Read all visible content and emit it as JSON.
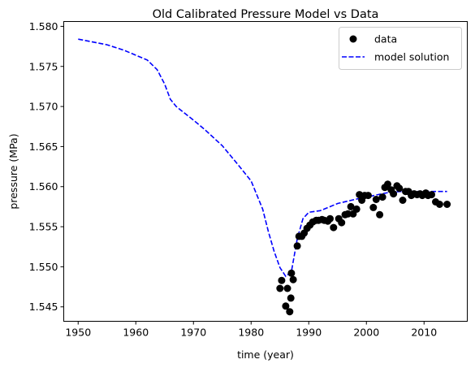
{
  "chart_data": {
    "type": "scatter",
    "title": "Old Calibrated Pressure Model vs Data",
    "xlabel": "time (year)",
    "ylabel": "pressure (MPa)",
    "xlim": [
      1947.5,
      2017.5
    ],
    "ylim": [
      1.5432,
      1.5806
    ],
    "xticks": [
      1950,
      1960,
      1970,
      1980,
      1990,
      2000,
      2010
    ],
    "yticks": [
      1.545,
      1.55,
      1.555,
      1.56,
      1.565,
      1.57,
      1.575,
      1.58
    ],
    "ytick_labels": [
      "1.545",
      "1.550",
      "1.555",
      "1.560",
      "1.565",
      "1.570",
      "1.575",
      "1.580"
    ],
    "grid": false,
    "legend_position": "top-right",
    "colors": {
      "data": "#000000",
      "model": "#0000ff"
    },
    "series": [
      {
        "name": "data",
        "style": "markers",
        "x": [
          1985,
          1985.3,
          1986,
          1986.3,
          1986.7,
          1986.9,
          1987,
          1987.3,
          1988,
          1988.3,
          1988.8,
          1989.2,
          1989.7,
          1990.2,
          1990.7,
          1991.3,
          1991.7,
          1992.3,
          1992.7,
          1993.3,
          1993.7,
          1994.3,
          1995.2,
          1995.7,
          1996.3,
          1996.8,
          1997.3,
          1997.7,
          1998.3,
          1998.8,
          1999.2,
          1999.7,
          2000.3,
          2001.2,
          2001.7,
          2002.3,
          2002.8,
          2003.2,
          2003.7,
          2004.3,
          2004.7,
          2005.3,
          2005.7,
          2006.3,
          2006.8,
          2007.3,
          2007.8,
          2008.3,
          2008.8,
          2009.3,
          2009.7,
          2010.3,
          2010.7,
          2011.3,
          2012,
          2012.7,
          2014
        ],
        "y": [
          1.5473,
          1.5483,
          1.5451,
          1.5473,
          1.5444,
          1.5461,
          1.5492,
          1.5484,
          1.5526,
          1.5538,
          1.5538,
          1.5542,
          1.5548,
          1.5552,
          1.5556,
          1.5558,
          1.5558,
          1.5559,
          1.5558,
          1.5557,
          1.556,
          1.5549,
          1.556,
          1.5555,
          1.5565,
          1.5566,
          1.5575,
          1.5566,
          1.5572,
          1.559,
          1.5583,
          1.5589,
          1.5589,
          1.5574,
          1.5584,
          1.5565,
          1.5587,
          1.5599,
          1.5603,
          1.5596,
          1.5591,
          1.5601,
          1.5598,
          1.5583,
          1.5594,
          1.5594,
          1.5589,
          1.5591,
          1.559,
          1.5591,
          1.5589,
          1.5592,
          1.5589,
          1.559,
          1.5581,
          1.5578,
          1.5578
        ]
      },
      {
        "name": "model solution",
        "style": "dashed",
        "x": [
          1950,
          1955,
          1958,
          1962,
          1963.7,
          1965,
          1966,
          1967,
          1970,
          1972,
          1975,
          1978,
          1980,
          1982,
          1983,
          1984,
          1985,
          1986,
          1987,
          1988,
          1989,
          1990,
          1992,
          1993,
          1995,
          1998,
          2000,
          2002,
          2004,
          2006,
          2008,
          2011,
          2014
        ],
        "y": [
          1.5784,
          1.5777,
          1.577,
          1.5758,
          1.5746,
          1.5728,
          1.5709,
          1.57,
          1.5683,
          1.5671,
          1.5651,
          1.5625,
          1.5607,
          1.5572,
          1.5544,
          1.5519,
          1.5499,
          1.5488,
          1.5494,
          1.5535,
          1.556,
          1.5568,
          1.557,
          1.5573,
          1.5579,
          1.5584,
          1.5587,
          1.559,
          1.5593,
          1.5594,
          1.5594,
          1.5594,
          1.5594
        ]
      }
    ]
  }
}
